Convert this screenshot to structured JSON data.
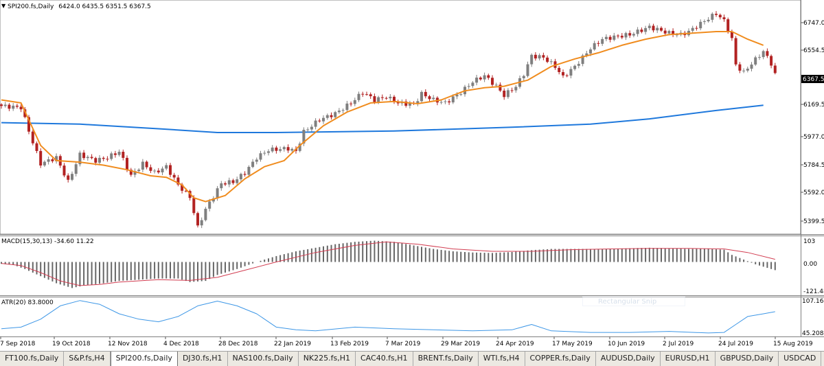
{
  "window": {
    "main_title": "SPI200.fs,Daily",
    "ohlc": "6424.0 6435.5 6351.5 6367.5",
    "macd_title": "MACD(15,30,13) -34.60 11.22",
    "atr_title": "ATR(20) 83.8000",
    "overlay_text": "Rectangular Snip"
  },
  "price_axis": {
    "labels": [
      "6747.0",
      "6554.5",
      "6169.5",
      "5977.0",
      "5784.5",
      "5592.0",
      "5399.5"
    ],
    "current": "6367.5"
  },
  "macd_axis": {
    "labels": [
      "103",
      "0.00",
      "-121.48"
    ]
  },
  "atr_axis": {
    "labels": [
      "107.166",
      "45.2089"
    ]
  },
  "time_axis": {
    "labels": [
      "7 Sep 2018",
      "19 Oct 2018",
      "12 Nov 2018",
      "4 Dec 2018",
      "28 Dec 2018",
      "22 Jan 2019",
      "13 Feb 2019",
      "7 Mar 2019",
      "29 Mar 2019",
      "24 Apr 2019",
      "17 May 2019",
      "10 Jun 2019",
      "2 Jul 2019",
      "24 Jul 2019",
      "15 Aug 2019"
    ]
  },
  "tabs": [
    "FT100.fs,Daily",
    "S&P.fs,H4",
    "SPI200.fs,Daily",
    "DJ30.fs,H1",
    "NAS100.fs,Daily",
    "NK225.fs,H1",
    "CAC40.fs,H1",
    "BRENT.fs,Daily",
    "WTI.fs,H4",
    "COPPER.fs,Daily",
    "AUDUSD,Daily",
    "EURUSD,H1",
    "GBPUSD,Daily",
    "USDCAD"
  ],
  "active_tab": 2,
  "colors": {
    "bull": "#7f7f7f",
    "bear": "#b22222",
    "ma_fast": "#f08c1e",
    "ma_slow": "#1e78dc",
    "macd_signal": "#d23c50",
    "atr": "#3c96e6"
  },
  "chart_data": [
    {
      "type": "candlestick",
      "ylim": [
        5320,
        6840
      ],
      "close_anchors": [
        [
          0,
          6160
        ],
        [
          5,
          6150
        ],
        [
          8,
          5920
        ],
        [
          10,
          5780
        ],
        [
          14,
          5820
        ],
        [
          17,
          5660
        ],
        [
          20,
          5840
        ],
        [
          24,
          5800
        ],
        [
          27,
          5820
        ],
        [
          30,
          5860
        ],
        [
          33,
          5700
        ],
        [
          36,
          5780
        ],
        [
          39,
          5720
        ],
        [
          42,
          5760
        ],
        [
          45,
          5640
        ],
        [
          48,
          5560
        ],
        [
          50,
          5360
        ],
        [
          52,
          5480
        ],
        [
          56,
          5650
        ],
        [
          59,
          5660
        ],
        [
          62,
          5720
        ],
        [
          65,
          5820
        ],
        [
          68,
          5870
        ],
        [
          73,
          5880
        ],
        [
          75,
          5860
        ],
        [
          77,
          5990
        ],
        [
          81,
          6070
        ],
        [
          85,
          6110
        ],
        [
          89,
          6180
        ],
        [
          92,
          6250
        ],
        [
          95,
          6200
        ],
        [
          98,
          6220
        ],
        [
          101,
          6180
        ],
        [
          105,
          6170
        ],
        [
          107,
          6240
        ],
        [
          110,
          6200
        ],
        [
          113,
          6180
        ],
        [
          117,
          6250
        ],
        [
          120,
          6320
        ],
        [
          123,
          6360
        ],
        [
          126,
          6290
        ],
        [
          128,
          6230
        ],
        [
          131,
          6290
        ],
        [
          133,
          6370
        ],
        [
          135,
          6490
        ],
        [
          138,
          6480
        ],
        [
          141,
          6420
        ],
        [
          143,
          6350
        ],
        [
          146,
          6420
        ],
        [
          150,
          6540
        ],
        [
          153,
          6600
        ],
        [
          157,
          6620
        ],
        [
          160,
          6630
        ],
        [
          165,
          6680
        ],
        [
          170,
          6640
        ],
        [
          173,
          6630
        ],
        [
          175,
          6650
        ],
        [
          179,
          6720
        ],
        [
          182,
          6770
        ],
        [
          184,
          6720
        ],
        [
          186,
          6600
        ],
        [
          187,
          6430
        ],
        [
          189,
          6380
        ],
        [
          191,
          6440
        ],
        [
          194,
          6520
        ],
        [
          196,
          6440
        ],
        [
          197,
          6367.5
        ]
      ],
      "ma_fast": {
        "name": "",
        "points": [
          [
            0,
            6200
          ],
          [
            5,
            6180
          ],
          [
            10,
            5900
          ],
          [
            14,
            5800
          ],
          [
            20,
            5790
          ],
          [
            26,
            5770
          ],
          [
            32,
            5740
          ],
          [
            38,
            5700
          ],
          [
            42,
            5690
          ],
          [
            46,
            5640
          ],
          [
            49,
            5555
          ],
          [
            52,
            5530
          ],
          [
            57,
            5570
          ],
          [
            62,
            5680
          ],
          [
            67,
            5760
          ],
          [
            72,
            5800
          ],
          [
            76,
            5900
          ],
          [
            82,
            6030
          ],
          [
            88,
            6120
          ],
          [
            94,
            6180
          ],
          [
            100,
            6190
          ],
          [
            106,
            6175
          ],
          [
            112,
            6200
          ],
          [
            118,
            6260
          ],
          [
            123,
            6280
          ],
          [
            128,
            6290
          ],
          [
            134,
            6330
          ],
          [
            140,
            6420
          ],
          [
            146,
            6470
          ],
          [
            152,
            6510
          ],
          [
            158,
            6560
          ],
          [
            164,
            6600
          ],
          [
            170,
            6630
          ],
          [
            176,
            6640
          ],
          [
            182,
            6650
          ],
          [
            186,
            6650
          ],
          [
            190,
            6600
          ],
          [
            194,
            6560
          ]
        ]
      },
      "ma_slow": {
        "name": "",
        "points": [
          [
            0,
            6050
          ],
          [
            20,
            6040
          ],
          [
            40,
            6010
          ],
          [
            55,
            5985
          ],
          [
            70,
            5985
          ],
          [
            100,
            5995
          ],
          [
            130,
            6020
          ],
          [
            150,
            6040
          ],
          [
            165,
            6075
          ],
          [
            182,
            6130
          ],
          [
            194,
            6165
          ]
        ]
      }
    },
    {
      "type": "bar",
      "ylim": [
        -135,
        103
      ],
      "histogram_anchors": [
        [
          0,
          -8
        ],
        [
          3,
          -12
        ],
        [
          6,
          -30
        ],
        [
          10,
          -60
        ],
        [
          14,
          -90
        ],
        [
          18,
          -110
        ],
        [
          21,
          -100
        ],
        [
          26,
          -90
        ],
        [
          30,
          -80
        ],
        [
          35,
          -75
        ],
        [
          40,
          -70
        ],
        [
          45,
          -70
        ],
        [
          48,
          -85
        ],
        [
          52,
          -80
        ],
        [
          55,
          -55
        ],
        [
          60,
          -30
        ],
        [
          65,
          0
        ],
        [
          70,
          25
        ],
        [
          75,
          45
        ],
        [
          80,
          60
        ],
        [
          85,
          75
        ],
        [
          90,
          85
        ],
        [
          95,
          90
        ],
        [
          100,
          85
        ],
        [
          105,
          70
        ],
        [
          110,
          55
        ],
        [
          115,
          45
        ],
        [
          120,
          40
        ],
        [
          125,
          38
        ],
        [
          130,
          42
        ],
        [
          135,
          50
        ],
        [
          140,
          55
        ],
        [
          145,
          55
        ],
        [
          150,
          55
        ],
        [
          155,
          55
        ],
        [
          160,
          58
        ],
        [
          165,
          60
        ],
        [
          170,
          58
        ],
        [
          175,
          55
        ],
        [
          180,
          55
        ],
        [
          184,
          52
        ],
        [
          186,
          30
        ],
        [
          189,
          10
        ],
        [
          192,
          -10
        ],
        [
          195,
          -25
        ],
        [
          197,
          -34.6
        ]
      ],
      "signal": {
        "name": "",
        "points": [
          [
            0,
            -6
          ],
          [
            5,
            -15
          ],
          [
            10,
            -45
          ],
          [
            15,
            -80
          ],
          [
            20,
            -100
          ],
          [
            25,
            -95
          ],
          [
            30,
            -85
          ],
          [
            40,
            -75
          ],
          [
            48,
            -78
          ],
          [
            55,
            -65
          ],
          [
            62,
            -35
          ],
          [
            70,
            0
          ],
          [
            80,
            40
          ],
          [
            90,
            70
          ],
          [
            98,
            85
          ],
          [
            106,
            75
          ],
          [
            115,
            55
          ],
          [
            125,
            45
          ],
          [
            135,
            45
          ],
          [
            145,
            52
          ],
          [
            155,
            55
          ],
          [
            165,
            57
          ],
          [
            175,
            57
          ],
          [
            184,
            55
          ],
          [
            190,
            40
          ],
          [
            197,
            11.22
          ]
        ]
      }
    },
    {
      "type": "line",
      "ylim": [
        40,
        107.166
      ],
      "atr": {
        "name": "",
        "points": [
          [
            0,
            52
          ],
          [
            5,
            55
          ],
          [
            10,
            70
          ],
          [
            15,
            95
          ],
          [
            20,
            105
          ],
          [
            25,
            98
          ],
          [
            30,
            80
          ],
          [
            35,
            70
          ],
          [
            40,
            65
          ],
          [
            45,
            75
          ],
          [
            50,
            95
          ],
          [
            55,
            104
          ],
          [
            60,
            95
          ],
          [
            65,
            80
          ],
          [
            70,
            55
          ],
          [
            75,
            50
          ],
          [
            80,
            48
          ],
          [
            90,
            55
          ],
          [
            100,
            52
          ],
          [
            110,
            50
          ],
          [
            120,
            48
          ],
          [
            130,
            50
          ],
          [
            135,
            60
          ],
          [
            140,
            48
          ],
          [
            150,
            45
          ],
          [
            160,
            45
          ],
          [
            170,
            47
          ],
          [
            180,
            44
          ],
          [
            184,
            45
          ],
          [
            187,
            60
          ],
          [
            190,
            75
          ],
          [
            194,
            80
          ],
          [
            197,
            84
          ]
        ]
      }
    }
  ]
}
